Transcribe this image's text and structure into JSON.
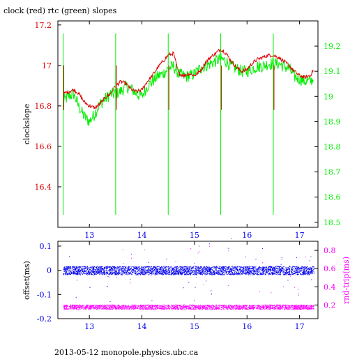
{
  "colors": {
    "clock": "#dd0000",
    "rtc": "#00ee00",
    "offset": "#0000ee",
    "roundtrip": "#ff00ff",
    "axis": "#000000"
  },
  "chart_data": [
    {
      "type": "line",
      "title": "clock (red) rtc (green) slopes",
      "xlabel": "",
      "ylabel": "clockslope",
      "ylabel_right": "",
      "xlim": [
        12.4,
        17.35
      ],
      "ylim": [
        16.2,
        17.22
      ],
      "ylim_right": [
        18.48,
        19.3
      ],
      "x_ticks": [
        "13",
        "14",
        "15",
        "16",
        "17"
      ],
      "y_ticks_left": [
        "16.4",
        "16.6",
        "16.8",
        "17",
        "17.2"
      ],
      "y_ticks_right": [
        "18.5",
        "18.6",
        "18.7",
        "18.8",
        "18.9",
        "19",
        "19.1",
        "19.2"
      ],
      "series": [
        {
          "name": "clock",
          "axis": "left",
          "x": [
            12.5,
            12.6,
            12.7,
            12.8,
            12.9,
            13.0,
            13.1,
            13.2,
            13.3,
            13.4,
            13.5,
            13.6,
            13.7,
            13.8,
            13.9,
            14.0,
            14.1,
            14.2,
            14.3,
            14.4,
            14.5,
            14.6,
            14.7,
            14.8,
            14.9,
            15.0,
            15.1,
            15.2,
            15.3,
            15.4,
            15.5,
            15.6,
            15.7,
            15.8,
            15.9,
            16.0,
            16.1,
            16.2,
            16.3,
            16.4,
            16.5,
            16.6,
            16.7,
            16.8,
            16.9,
            17.0,
            17.1,
            17.2,
            17.27
          ],
          "y": [
            16.86,
            16.87,
            16.88,
            16.86,
            16.82,
            16.8,
            16.79,
            16.81,
            16.84,
            16.86,
            16.9,
            16.92,
            16.91,
            16.88,
            16.87,
            16.88,
            16.92,
            16.95,
            16.99,
            17.02,
            17.05,
            17.06,
            16.96,
            16.95,
            16.96,
            16.95,
            16.97,
            17.01,
            17.04,
            17.06,
            17.08,
            17.06,
            17.02,
            16.99,
            16.97,
            16.98,
            17.01,
            17.03,
            17.04,
            17.05,
            17.05,
            17.04,
            17.02,
            17.0,
            16.97,
            16.95,
            16.94,
            16.95,
            16.98
          ]
        },
        {
          "name": "rtc",
          "axis": "right",
          "x": [
            12.5,
            12.6,
            12.7,
            12.8,
            12.9,
            13.0,
            13.1,
            13.2,
            13.3,
            13.4,
            13.5,
            13.6,
            13.7,
            13.8,
            13.9,
            14.0,
            14.1,
            14.2,
            14.3,
            14.4,
            14.5,
            14.6,
            14.7,
            14.8,
            14.9,
            15.0,
            15.1,
            15.2,
            15.3,
            15.4,
            15.5,
            15.6,
            15.7,
            15.8,
            15.9,
            16.0,
            16.1,
            16.2,
            16.3,
            16.4,
            16.5,
            16.6,
            16.7,
            16.8,
            16.9,
            17.0,
            17.1,
            17.2,
            17.27
          ],
          "y": [
            18.98,
            19.0,
            19.01,
            18.96,
            18.92,
            18.9,
            18.93,
            18.97,
            18.99,
            19.01,
            19.01,
            19.02,
            19.04,
            19.03,
            19.01,
            19.0,
            19.04,
            19.06,
            19.08,
            19.09,
            19.11,
            19.12,
            19.09,
            19.08,
            19.08,
            19.09,
            19.11,
            19.12,
            19.13,
            19.14,
            19.15,
            19.14,
            19.12,
            19.11,
            19.1,
            19.1,
            19.11,
            19.12,
            19.12,
            19.13,
            19.13,
            19.13,
            19.12,
            19.11,
            19.08,
            19.07,
            19.06,
            19.06,
            19.07
          ]
        }
      ]
    },
    {
      "type": "scatter",
      "xlabel": "",
      "ylabel": "offset(ms)",
      "ylabel_right": "rnd-trip(ms)",
      "xlim": [
        12.4,
        17.35
      ],
      "ylim": [
        -0.2,
        0.12
      ],
      "ylim_right": [
        0.05,
        0.9
      ],
      "x_ticks": [
        "13",
        "14",
        "15",
        "16",
        "17"
      ],
      "y_ticks_left": [
        "-0.2",
        "-0.1",
        "0",
        "0.1"
      ],
      "y_ticks_right": [
        "0.2",
        "0.4",
        "0.6",
        "0.8"
      ],
      "series": [
        {
          "name": "offset",
          "axis": "left",
          "x": [
            12.5,
            13.0,
            13.5,
            14.0,
            14.5,
            15.0,
            15.5,
            16.0,
            16.5,
            17.0,
            17.27
          ],
          "y": [
            0.0,
            0.0,
            0.0,
            0.0,
            0.0,
            0.0,
            0.0,
            0.0,
            0.0,
            0.0,
            0.0
          ]
        },
        {
          "name": "rnd-trip",
          "axis": "right",
          "x": [
            12.5,
            13.0,
            13.5,
            14.0,
            14.5,
            15.0,
            15.5,
            16.0,
            16.5,
            17.0,
            17.27
          ],
          "y": [
            0.18,
            0.18,
            0.18,
            0.18,
            0.18,
            0.18,
            0.18,
            0.18,
            0.18,
            0.18,
            0.18
          ]
        }
      ]
    }
  ],
  "footer": "2013-05-12 monopole.physics.ubc.ca"
}
